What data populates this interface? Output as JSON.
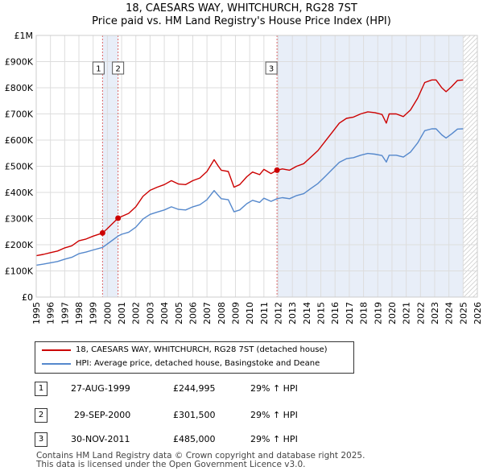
{
  "chart_data": {
    "type": "line",
    "title": "18, CAESARS WAY, WHITCHURCH, RG28 7ST",
    "subtitle": "Price paid vs. HM Land Registry's House Price Index (HPI)",
    "x_range": [
      1995,
      2026
    ],
    "ylim": [
      0,
      1000000
    ],
    "y_ticks": [
      {
        "value": 0,
        "label": "£0"
      },
      {
        "value": 100000,
        "label": "£100K"
      },
      {
        "value": 200000,
        "label": "£200K"
      },
      {
        "value": 300000,
        "label": "£300K"
      },
      {
        "value": 400000,
        "label": "£400K"
      },
      {
        "value": 500000,
        "label": "£500K"
      },
      {
        "value": 600000,
        "label": "£600K"
      },
      {
        "value": 700000,
        "label": "£700K"
      },
      {
        "value": 800000,
        "label": "£800K"
      },
      {
        "value": 900000,
        "label": "£900K"
      },
      {
        "value": 1000000,
        "label": "£1M"
      }
    ],
    "x_ticks": [
      "1995",
      "1996",
      "1997",
      "1998",
      "1999",
      "2000",
      "2001",
      "2002",
      "2003",
      "2004",
      "2005",
      "2006",
      "2007",
      "2008",
      "2009",
      "2010",
      "2011",
      "2012",
      "2013",
      "2014",
      "2015",
      "2016",
      "2017",
      "2018",
      "2019",
      "2020",
      "2021",
      "2022",
      "2023",
      "2024",
      "2025",
      "2026"
    ],
    "future_hatch_start": 2025.0,
    "series": [
      {
        "name": "18, CAESARS WAY, WHITCHURCH, RG28 7ST (detached house)",
        "color": "#cc0000",
        "x": [
          1995.0,
          1995.5,
          1996.0,
          1996.5,
          1997.0,
          1997.5,
          1998.0,
          1998.5,
          1999.0,
          1999.66,
          2000.0,
          2000.75,
          2001.0,
          2001.5,
          2002.0,
          2002.5,
          2003.0,
          2003.5,
          2004.0,
          2004.5,
          2005.0,
          2005.5,
          2006.0,
          2006.5,
          2007.0,
          2007.5,
          2007.8,
          2008.0,
          2008.5,
          2008.9,
          2009.3,
          2009.8,
          2010.2,
          2010.7,
          2011.0,
          2011.5,
          2011.92,
          2012.3,
          2012.8,
          2013.3,
          2013.8,
          2014.3,
          2014.8,
          2015.3,
          2015.8,
          2016.3,
          2016.8,
          2017.3,
          2017.8,
          2018.3,
          2018.8,
          2019.3,
          2019.6,
          2019.8,
          2020.3,
          2020.8,
          2021.3,
          2021.8,
          2022.3,
          2022.8,
          2023.1,
          2023.5,
          2023.8,
          2024.2,
          2024.6,
          2025.0
        ],
        "values": [
          158000,
          163000,
          170000,
          176000,
          188000,
          196000,
          215000,
          222000,
          233000,
          244995,
          262000,
          301500,
          308000,
          320000,
          345000,
          385000,
          408000,
          420000,
          430000,
          445000,
          432000,
          430000,
          445000,
          455000,
          480000,
          525000,
          500000,
          485000,
          480000,
          420000,
          430000,
          460000,
          478000,
          468000,
          488000,
          472000,
          485000,
          490000,
          485000,
          500000,
          510000,
          535000,
          560000,
          595000,
          630000,
          665000,
          683000,
          688000,
          700000,
          708000,
          705000,
          698000,
          665000,
          700000,
          700000,
          690000,
          715000,
          760000,
          820000,
          830000,
          830000,
          800000,
          785000,
          805000,
          828000,
          830000
        ]
      },
      {
        "name": "HPI: Average price, detached house, Basingstoke and Deane",
        "color": "#5588cc",
        "x": [
          1995.0,
          1995.5,
          1996.0,
          1996.5,
          1997.0,
          1997.5,
          1998.0,
          1998.5,
          1999.0,
          1999.66,
          2000.0,
          2000.75,
          2001.0,
          2001.5,
          2002.0,
          2002.5,
          2003.0,
          2003.5,
          2004.0,
          2004.5,
          2005.0,
          2005.5,
          2006.0,
          2006.5,
          2007.0,
          2007.5,
          2007.8,
          2008.0,
          2008.5,
          2008.9,
          2009.3,
          2009.8,
          2010.2,
          2010.7,
          2011.0,
          2011.5,
          2011.92,
          2012.3,
          2012.8,
          2013.3,
          2013.8,
          2014.3,
          2014.8,
          2015.3,
          2015.8,
          2016.3,
          2016.8,
          2017.3,
          2017.8,
          2018.3,
          2018.8,
          2019.3,
          2019.6,
          2019.8,
          2020.3,
          2020.8,
          2021.3,
          2021.8,
          2022.3,
          2022.8,
          2023.1,
          2023.5,
          2023.8,
          2024.2,
          2024.6,
          2025.0
        ],
        "values": [
          122000,
          126000,
          131000,
          136000,
          145000,
          152000,
          166000,
          172000,
          180000,
          190000,
          203000,
          233000,
          240000,
          248000,
          267000,
          298000,
          316000,
          325000,
          333000,
          345000,
          335000,
          333000,
          345000,
          353000,
          372000,
          407000,
          388000,
          376000,
          372000,
          326000,
          333000,
          357000,
          370000,
          362000,
          378000,
          366000,
          376000,
          380000,
          376000,
          388000,
          395000,
          415000,
          434000,
          461000,
          488000,
          515000,
          529000,
          533000,
          542000,
          549000,
          546000,
          541000,
          516000,
          542000,
          542000,
          535000,
          554000,
          589000,
          636000,
          643000,
          643000,
          620000,
          608000,
          624000,
          642000,
          643000
        ]
      }
    ],
    "markers": [
      {
        "label": "1",
        "x": 1999.66,
        "value": 244995
      },
      {
        "label": "2",
        "x": 2000.75,
        "value": 301500
      },
      {
        "label": "3",
        "x": 2011.92,
        "value": 485000
      }
    ]
  },
  "transactions": [
    {
      "num": "1",
      "date": "27-AUG-1999",
      "price": "£244,995",
      "hpi": "29% ↑ HPI"
    },
    {
      "num": "2",
      "date": "29-SEP-2000",
      "price": "£301,500",
      "hpi": "29% ↑ HPI"
    },
    {
      "num": "3",
      "date": "30-NOV-2011",
      "price": "£485,000",
      "hpi": "29% ↑ HPI"
    }
  ],
  "footer": {
    "line1": "Contains HM Land Registry data © Crown copyright and database right 2025.",
    "line2": "This data is licensed under the Open Government Licence v3.0."
  }
}
